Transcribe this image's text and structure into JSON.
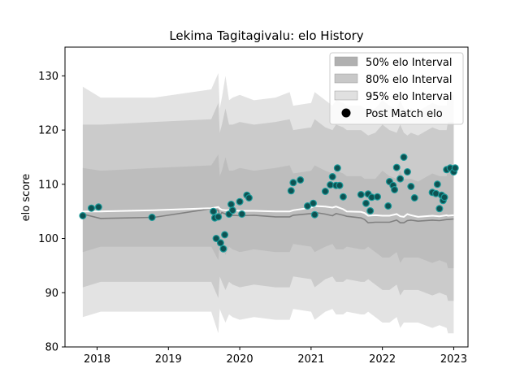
{
  "chart_data": {
    "type": "area",
    "title": "Lekima Tagitagivalu: elo History",
    "xlabel": "",
    "ylabel": "elo score",
    "xlim": [
      2017.55,
      2023.2
    ],
    "ylim": [
      80,
      135.3
    ],
    "x_ticks": [
      2018,
      2019,
      2020,
      2021,
      2022,
      2023
    ],
    "y_ticks": [
      80,
      90,
      100,
      110,
      120,
      130
    ],
    "legend_position": "top-right",
    "legend": [
      {
        "label": "50% elo Interval",
        "color": "#b0b0b0",
        "kind": "patch"
      },
      {
        "label": "80% elo Interval",
        "color": "#c8c8c8",
        "kind": "patch"
      },
      {
        "label": "95% elo Interval",
        "color": "#e0e0e0",
        "kind": "patch"
      },
      {
        "label": "Post Match elo",
        "color": "#000000",
        "kind": "marker"
      }
    ],
    "colors": {
      "band95": "#e3e3e3",
      "band80": "#cbcbcb",
      "band50": "#bdbdbd",
      "median": "#808080",
      "mean": "#ffffff",
      "point_fill": "#0e5252",
      "point_edge": "#1a9a9a"
    },
    "bands": {
      "x": [
        2017.8,
        2018.05,
        2018.8,
        2019.6,
        2019.7,
        2019.72,
        2019.75,
        2019.8,
        2019.85,
        2019.9,
        2020.0,
        2020.2,
        2020.5,
        2020.7,
        2020.75,
        2021.0,
        2021.05,
        2021.2,
        2021.3,
        2021.35,
        2021.45,
        2021.5,
        2021.7,
        2021.75,
        2021.8,
        2021.9,
        2022.0,
        2022.1,
        2022.2,
        2022.25,
        2022.3,
        2022.35,
        2022.4,
        2022.5,
        2022.7,
        2022.8,
        2022.9,
        2022.92,
        2023.0
      ],
      "band95_upper": [
        128,
        126,
        126,
        127.5,
        130.5,
        124,
        126,
        130,
        125.5,
        126,
        126.5,
        125.5,
        126,
        127,
        124.5,
        125,
        127,
        125.5,
        124.5,
        125.5,
        125,
        124.5,
        124.5,
        124,
        123.5,
        124,
        125.5,
        124.5,
        124,
        125.5,
        124,
        123.5,
        124,
        123.5,
        125,
        124.5,
        124.5,
        126.5,
        126.5
      ],
      "band95_lower": [
        85.5,
        86.5,
        86.5,
        86.5,
        82.5,
        87,
        86,
        84.5,
        86,
        85.5,
        85,
        85.5,
        85,
        85,
        87,
        86.5,
        85,
        86.5,
        87,
        86,
        86,
        86.5,
        86,
        86,
        86.5,
        85.5,
        84.5,
        84.5,
        85.5,
        83.5,
        84.5,
        84.5,
        84.5,
        84.5,
        83.5,
        84,
        83.5,
        82.5,
        82.5
      ],
      "band80_upper": [
        121,
        121,
        121.5,
        122,
        125,
        119.5,
        121,
        124,
        121,
        121,
        121.5,
        121,
        121.5,
        122,
        120,
        120.5,
        122,
        120.5,
        120,
        121,
        120.5,
        120,
        120,
        119.5,
        119,
        119.5,
        121,
        120,
        119.5,
        121,
        119.5,
        119,
        119.5,
        119,
        120.5,
        120,
        120,
        121.5,
        121.5
      ],
      "band80_lower": [
        91,
        92,
        92,
        92,
        89,
        93,
        92,
        90.5,
        92,
        91.5,
        91,
        91.5,
        91,
        91,
        93,
        92.5,
        91,
        92.5,
        93,
        92,
        92,
        92.5,
        92,
        92,
        92.5,
        91.5,
        90.5,
        90.5,
        91.5,
        89.5,
        90.5,
        90.5,
        90.5,
        90.5,
        89.5,
        90,
        89.5,
        88.5,
        88.5
      ],
      "band50_upper": [
        113,
        112.5,
        113,
        113.5,
        115.5,
        111.5,
        112.5,
        115,
        112.5,
        112.5,
        113,
        112.5,
        113,
        113.5,
        112,
        112.5,
        113.5,
        112.5,
        112,
        112.5,
        112,
        111.5,
        111.5,
        111,
        111,
        111,
        112.5,
        111.5,
        111,
        112.5,
        111,
        111,
        111,
        110.5,
        112,
        111.5,
        111.5,
        113,
        113
      ],
      "band50_lower": [
        97.5,
        98.5,
        98.5,
        98.5,
        96,
        99.5,
        98.5,
        97,
        98.5,
        98,
        97.5,
        98,
        97.5,
        97.5,
        99,
        98.5,
        97.5,
        98.5,
        99,
        98,
        98,
        98.5,
        98,
        98,
        98.5,
        97.5,
        96.5,
        96.5,
        97.5,
        95.5,
        96.5,
        96.5,
        96.5,
        96.5,
        95.5,
        96,
        95.5,
        94.5,
        94.5
      ],
      "median": [
        104.5,
        103.7,
        103.9,
        105.5,
        105.2,
        104.2,
        104.8,
        104.5,
        104.2,
        104.3,
        104.2,
        104.3,
        104.0,
        104.0,
        104.3,
        104.6,
        104.8,
        104.5,
        104.2,
        104.6,
        104.3,
        104.1,
        103.8,
        103.5,
        102.9,
        103.0,
        103.0,
        103.0,
        103.4,
        102.9,
        102.9,
        103.3,
        103.4,
        103.2,
        103.4,
        103.3,
        103.5,
        103.5,
        103.6
      ],
      "mean": [
        105,
        105,
        105.2,
        105.6,
        105.8,
        105.5,
        105.3,
        105.2,
        105.2,
        105.2,
        105.1,
        105.1,
        105.0,
        105.0,
        105.2,
        105.7,
        106.0,
        105.9,
        105.7,
        105.9,
        105.4,
        105.0,
        104.9,
        104.7,
        104.2,
        104.3,
        104.2,
        104.2,
        104.5,
        104.1,
        104.0,
        104.5,
        104.3,
        104.0,
        104.2,
        104.1,
        104.3,
        104.2,
        104.3
      ]
    },
    "points": {
      "x": [
        2017.8,
        2017.92,
        2018.02,
        2018.77,
        2019.63,
        2019.65,
        2019.67,
        2019.7,
        2019.73,
        2019.77,
        2019.79,
        2019.85,
        2019.88,
        2019.9,
        2020.0,
        2020.03,
        2020.1,
        2020.13,
        2020.72,
        2020.75,
        2020.85,
        2020.95,
        2021.03,
        2021.05,
        2021.2,
        2021.27,
        2021.3,
        2021.35,
        2021.37,
        2021.4,
        2021.45,
        2021.7,
        2021.77,
        2021.8,
        2021.83,
        2021.85,
        2021.93,
        2022.08,
        2022.1,
        2022.15,
        2022.17,
        2022.2,
        2022.25,
        2022.3,
        2022.35,
        2022.4,
        2022.45,
        2022.7,
        2022.75,
        2022.77,
        2022.8,
        2022.83,
        2022.85,
        2022.87,
        2022.9,
        2022.95,
        2023.0,
        2023.02
      ],
      "y": [
        104.2,
        105.6,
        105.8,
        103.9,
        105.0,
        103.8,
        100.0,
        104.0,
        99.2,
        98.1,
        100.7,
        104.5,
        106.3,
        105.2,
        106.8,
        104.5,
        108.0,
        107.5,
        108.8,
        110.3,
        110.8,
        106.0,
        106.5,
        104.4,
        108.7,
        109.9,
        111.4,
        109.8,
        113.0,
        109.8,
        107.7,
        108.1,
        106.5,
        108.2,
        105.1,
        107.6,
        107.7,
        106.0,
        110.5,
        109.8,
        109.0,
        113.1,
        111.0,
        115.0,
        112.3,
        109.6,
        107.5,
        108.5,
        108.3,
        110.0,
        105.5,
        108.0,
        107.0,
        107.6,
        112.7,
        113.0,
        112.3,
        113.0
      ]
    }
  }
}
